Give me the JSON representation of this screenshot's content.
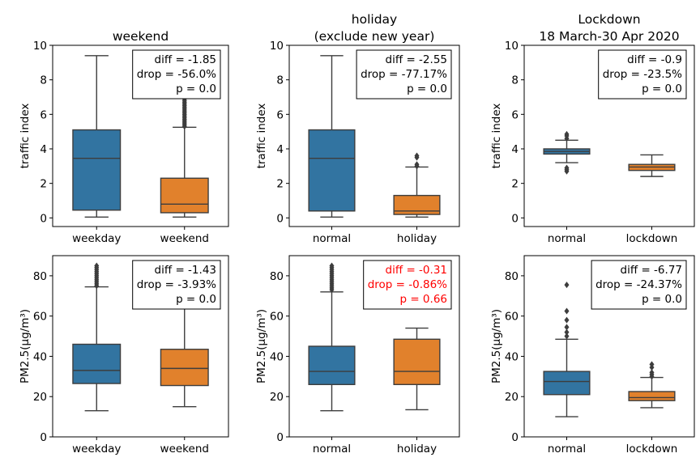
{
  "chart_data": [
    {
      "type": "box",
      "title": [
        "weekend"
      ],
      "ylabel": "traffic index",
      "ylim": [
        -0.5,
        10
      ],
      "yticks": [
        "0",
        "2",
        "4",
        "6",
        "8",
        "10"
      ],
      "categories": [
        "weekday",
        "weekend"
      ],
      "colors": [
        "#3274a1",
        "#e1812c"
      ],
      "boxes": [
        {
          "q1": 0.45,
          "median": 3.45,
          "q3": 5.1,
          "whisker_low": 0.05,
          "whisker_high": 9.4,
          "outliers": []
        },
        {
          "q1": 0.3,
          "median": 0.8,
          "q3": 2.3,
          "whisker_low": 0.05,
          "whisker_high": 5.25,
          "outliers": [
            5.3,
            5.4,
            5.5,
            5.6,
            5.7,
            5.8,
            5.9,
            6.0,
            6.1,
            6.2,
            6.3,
            6.4,
            6.5,
            6.6,
            6.7,
            6.8,
            6.9,
            7.0
          ]
        }
      ],
      "annotation": {
        "lines": [
          "diff = -1.85",
          "drop = -56.0%",
          "p = 0.0"
        ],
        "color": "#000000"
      }
    },
    {
      "type": "box",
      "title": [
        "holiday",
        "(exclude new year)"
      ],
      "ylabel": "traffic index",
      "ylim": [
        -0.5,
        10
      ],
      "yticks": [
        "0",
        "2",
        "4",
        "6",
        "8",
        "10"
      ],
      "categories": [
        "normal",
        "holiday"
      ],
      "colors": [
        "#3274a1",
        "#e1812c"
      ],
      "boxes": [
        {
          "q1": 0.4,
          "median": 3.45,
          "q3": 5.1,
          "whisker_low": 0.05,
          "whisker_high": 9.4,
          "outliers": []
        },
        {
          "q1": 0.2,
          "median": 0.4,
          "q3": 1.3,
          "whisker_low": 0.05,
          "whisker_high": 2.95,
          "outliers": [
            3.0,
            3.1,
            3.5,
            3.6
          ]
        }
      ],
      "annotation": {
        "lines": [
          "diff = -2.55",
          "drop = -77.17%",
          "p = 0.0"
        ],
        "color": "#000000"
      }
    },
    {
      "type": "box",
      "title": [
        "Lockdown",
        "18 March-30 Apr 2020"
      ],
      "ylabel": "traffic index",
      "ylim": [
        -0.5,
        10
      ],
      "yticks": [
        "0",
        "2",
        "4",
        "6",
        "8",
        "10"
      ],
      "categories": [
        "normal",
        "lockdown"
      ],
      "colors": [
        "#3274a1",
        "#e1812c"
      ],
      "boxes": [
        {
          "q1": 3.7,
          "median": 3.85,
          "q3": 4.0,
          "whisker_low": 3.2,
          "whisker_high": 4.5,
          "outliers": [
            2.7,
            2.8,
            2.9,
            4.6,
            4.75,
            4.85
          ]
        },
        {
          "q1": 2.75,
          "median": 2.95,
          "q3": 3.1,
          "whisker_low": 2.4,
          "whisker_high": 3.65,
          "outliers": []
        }
      ],
      "annotation": {
        "lines": [
          "diff = -0.9",
          "drop = -23.5%",
          "p = 0.0"
        ],
        "color": "#000000"
      }
    },
    {
      "type": "box",
      "title": [],
      "ylabel": "PM2.5(μg/m³)",
      "ylim": [
        0,
        90
      ],
      "yticks": [
        "0",
        "20",
        "40",
        "60",
        "80"
      ],
      "categories": [
        "weekday",
        "weekend"
      ],
      "colors": [
        "#3274a1",
        "#e1812c"
      ],
      "boxes": [
        {
          "q1": 26.5,
          "median": 33.0,
          "q3": 46.0,
          "whisker_low": 13.0,
          "whisker_high": 74.5,
          "outliers": [
            75,
            76,
            77,
            78,
            79,
            80,
            81,
            82,
            83,
            84,
            85
          ]
        },
        {
          "q1": 25.5,
          "median": 34.0,
          "q3": 43.5,
          "whisker_low": 15.0,
          "whisker_high": 66.0,
          "outliers": []
        }
      ],
      "annotation": {
        "lines": [
          "diff = -1.43",
          "drop = -3.93%",
          "p = 0.0"
        ],
        "color": "#000000"
      }
    },
    {
      "type": "box",
      "title": [],
      "ylabel": "PM2.5(μg/m³)",
      "ylim": [
        0,
        90
      ],
      "yticks": [
        "0",
        "20",
        "40",
        "60",
        "80"
      ],
      "categories": [
        "normal",
        "holiday"
      ],
      "colors": [
        "#3274a1",
        "#e1812c"
      ],
      "boxes": [
        {
          "q1": 26.0,
          "median": 32.5,
          "q3": 45.0,
          "whisker_low": 13.0,
          "whisker_high": 72.0,
          "outliers": [
            73,
            74,
            75,
            76,
            77,
            78,
            79,
            80,
            81,
            82,
            83,
            84,
            85
          ]
        },
        {
          "q1": 26.0,
          "median": 32.5,
          "q3": 48.5,
          "whisker_low": 13.5,
          "whisker_high": 54.0,
          "outliers": []
        }
      ],
      "annotation": {
        "lines": [
          "diff = -0.31",
          "drop = -0.86%",
          "p = 0.66"
        ],
        "color": "#ff0000"
      }
    },
    {
      "type": "box",
      "title": [],
      "ylabel": "PM2.5(μg/m³)",
      "ylim": [
        0,
        90
      ],
      "yticks": [
        "0",
        "20",
        "40",
        "60",
        "80"
      ],
      "categories": [
        "normal",
        "lockdown"
      ],
      "colors": [
        "#3274a1",
        "#e1812c"
      ],
      "boxes": [
        {
          "q1": 21.0,
          "median": 27.5,
          "q3": 32.5,
          "whisker_low": 10.0,
          "whisker_high": 48.5,
          "outliers": [
            50,
            52,
            54.5,
            58,
            62.5,
            75.5
          ]
        },
        {
          "q1": 18.0,
          "median": 19.5,
          "q3": 22.5,
          "whisker_low": 14.5,
          "whisker_high": 29.5,
          "outliers": [
            30,
            31,
            32,
            34.5,
            36
          ]
        }
      ],
      "annotation": {
        "lines": [
          "diff = -6.77",
          "drop = -24.37%",
          "p = 0.0"
        ],
        "color": "#000000"
      }
    }
  ]
}
